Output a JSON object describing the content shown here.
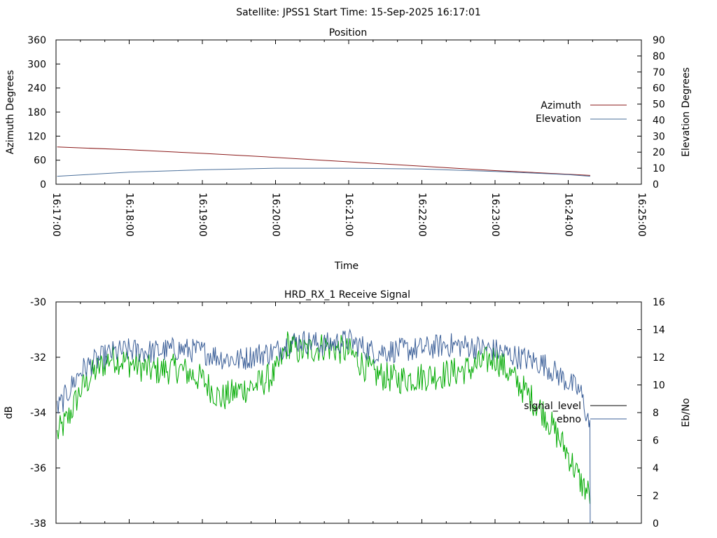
{
  "header": {
    "title": "Satellite: JPSS1    Start Time: 15-Sep-2025 16:17:01"
  },
  "chart_data": [
    {
      "type": "line",
      "title": "Position",
      "xlabel": "Time",
      "ylabel_left": "Azimuth Degrees",
      "ylabel_right": "Elevation Degrees",
      "x_ticks": [
        "16:17:00",
        "16:18:00",
        "16:19:00",
        "16:20:00",
        "16:21:00",
        "16:22:00",
        "16:23:00",
        "16:24:00",
        "16:25:00"
      ],
      "xlim": [
        "16:17:00",
        "16:25:00"
      ],
      "y_left_ticks": [
        "0",
        "60",
        "120",
        "180",
        "240",
        "300",
        "360"
      ],
      "y_left_lim": [
        0,
        360
      ],
      "y_right_ticks": [
        "0",
        "10",
        "20",
        "30",
        "40",
        "50",
        "60",
        "70",
        "80",
        "90"
      ],
      "y_right_lim": [
        0,
        90
      ],
      "legend_position": "right",
      "series": [
        {
          "name": "Azimuth",
          "axis": "left",
          "color": "#8b1a1a",
          "x": [
            "16:17:01",
            "16:18:00",
            "16:19:00",
            "16:20:00",
            "16:21:00",
            "16:22:00",
            "16:23:00",
            "16:24:00",
            "16:24:18"
          ],
          "values": [
            93,
            86,
            77,
            67,
            56,
            45,
            34,
            25,
            22
          ]
        },
        {
          "name": "Elevation",
          "axis": "right",
          "color": "#4a6f9a",
          "x": [
            "16:17:01",
            "16:18:00",
            "16:19:00",
            "16:20:00",
            "16:21:00",
            "16:22:00",
            "16:23:00",
            "16:24:00",
            "16:24:18"
          ],
          "values": [
            5,
            7.5,
            9,
            10,
            10,
            9.5,
            8,
            6,
            5
          ]
        }
      ]
    },
    {
      "type": "line",
      "title": "HRD_RX_1 Receive Signal",
      "ylabel_left": "dB",
      "ylabel_right": "Eb/No",
      "y_left_ticks": [
        "-30",
        "-32",
        "-34",
        "-36",
        "-38"
      ],
      "y_left_lim": [
        -38,
        -30
      ],
      "y_right_ticks": [
        "0",
        "2",
        "4",
        "6",
        "8",
        "10",
        "12",
        "14",
        "16"
      ],
      "y_right_lim": [
        0,
        16
      ],
      "xlim": [
        "16:17:00",
        "16:25:00"
      ],
      "legend_position": "right",
      "legend": [
        "signal_level",
        "ebno"
      ],
      "series": [
        {
          "name": "signal_level",
          "axis": "left",
          "color": "#00aa00",
          "x": [
            "16:17:01",
            "16:17:10",
            "16:17:20",
            "16:17:30",
            "16:17:45",
            "16:18:00",
            "16:18:20",
            "16:18:40",
            "16:19:00",
            "16:19:15",
            "16:19:30",
            "16:19:45",
            "16:20:00",
            "16:20:10",
            "16:20:20",
            "16:20:40",
            "16:21:00",
            "16:21:20",
            "16:21:40",
            "16:22:00",
            "16:22:20",
            "16:22:40",
            "16:23:00",
            "16:23:20",
            "16:23:40",
            "16:24:00",
            "16:24:10",
            "16:24:18"
          ],
          "values": [
            -34.8,
            -34.2,
            -33.2,
            -32.6,
            -32.0,
            -32.2,
            -32.5,
            -32.4,
            -32.8,
            -33.5,
            -33.2,
            -33.0,
            -32.6,
            -31.5,
            -31.8,
            -31.6,
            -31.8,
            -32.6,
            -32.8,
            -32.7,
            -32.6,
            -32.4,
            -32.0,
            -33.0,
            -34.0,
            -35.5,
            -36.5,
            -37.0
          ]
        },
        {
          "name": "ebno",
          "axis": "right",
          "color": "#3b5f98",
          "x": [
            "16:17:01",
            "16:17:10",
            "16:17:20",
            "16:17:30",
            "16:17:45",
            "16:18:00",
            "16:18:20",
            "16:18:40",
            "16:19:00",
            "16:19:15",
            "16:19:30",
            "16:19:45",
            "16:20:00",
            "16:20:10",
            "16:20:20",
            "16:20:40",
            "16:21:00",
            "16:21:20",
            "16:21:40",
            "16:22:00",
            "16:22:20",
            "16:22:40",
            "16:23:00",
            "16:23:20",
            "16:23:40",
            "16:24:00",
            "16:24:10",
            "16:24:18"
          ],
          "values": [
            8.2,
            9.5,
            11.0,
            11.6,
            12.3,
            12.5,
            12.4,
            12.6,
            12.4,
            12.0,
            11.8,
            12.2,
            12.4,
            13.0,
            13.2,
            12.9,
            13.2,
            12.4,
            12.5,
            12.6,
            12.9,
            12.8,
            12.5,
            12.0,
            11.5,
            10.2,
            9.5,
            7.0
          ]
        }
      ]
    }
  ]
}
